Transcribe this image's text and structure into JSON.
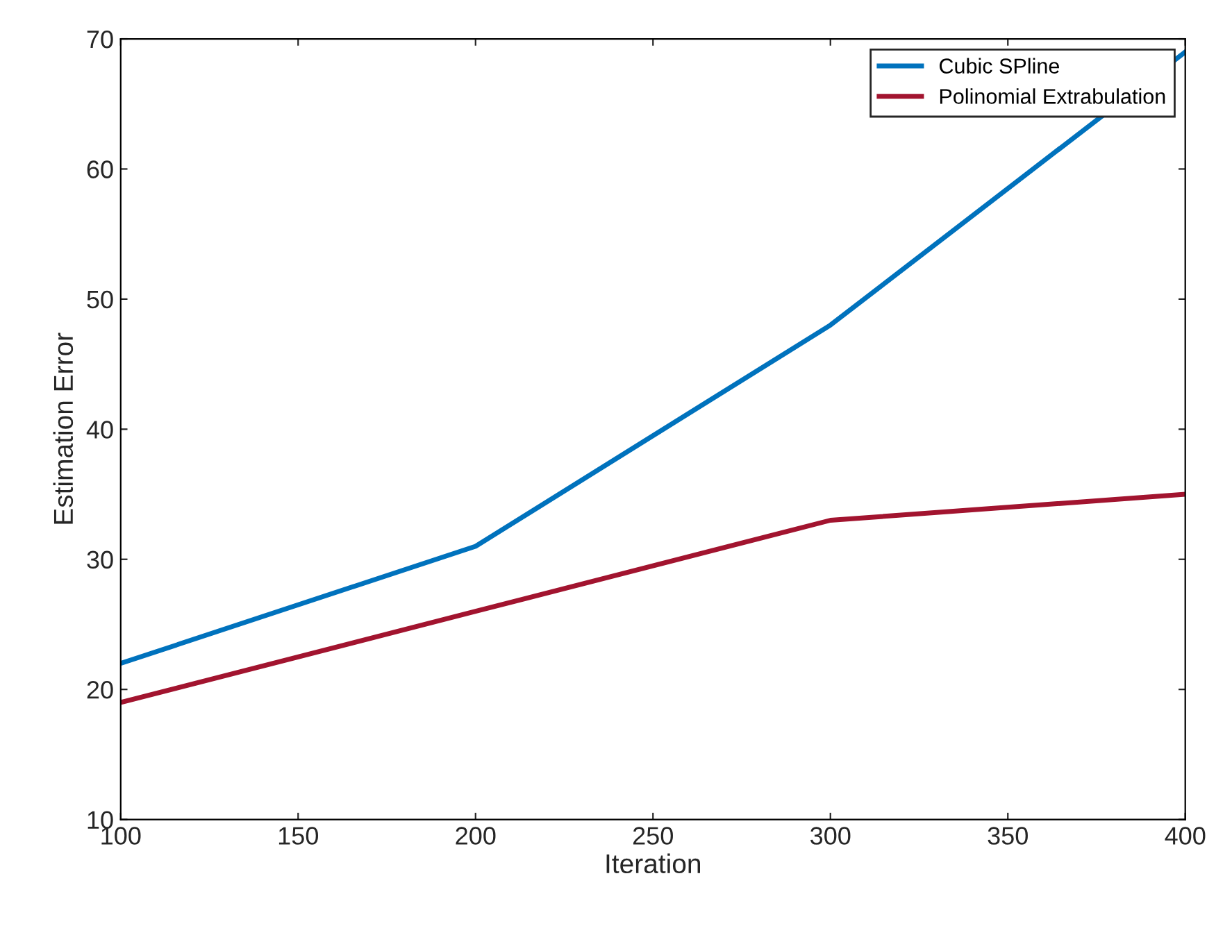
{
  "chart_data": {
    "type": "line",
    "xlabel": "Iteration",
    "ylabel": "Estimation Error",
    "x": [
      100,
      200,
      300,
      400
    ],
    "series": [
      {
        "name": "Cubic SPline",
        "color": "#0072bd",
        "values": [
          22,
          31,
          48,
          69
        ]
      },
      {
        "name": "Polinomial Extrabulation",
        "color": "#a2142f",
        "values": [
          19,
          26,
          33,
          35
        ]
      }
    ],
    "xlim": [
      100,
      400
    ],
    "xticks": [
      100,
      150,
      200,
      250,
      300,
      350,
      400
    ],
    "ylim": [
      10,
      70
    ],
    "yticks": [
      10,
      20,
      30,
      40,
      50,
      60,
      70
    ],
    "grid": false,
    "legend": "top right",
    "marker": "none",
    "line_style": "solid"
  }
}
